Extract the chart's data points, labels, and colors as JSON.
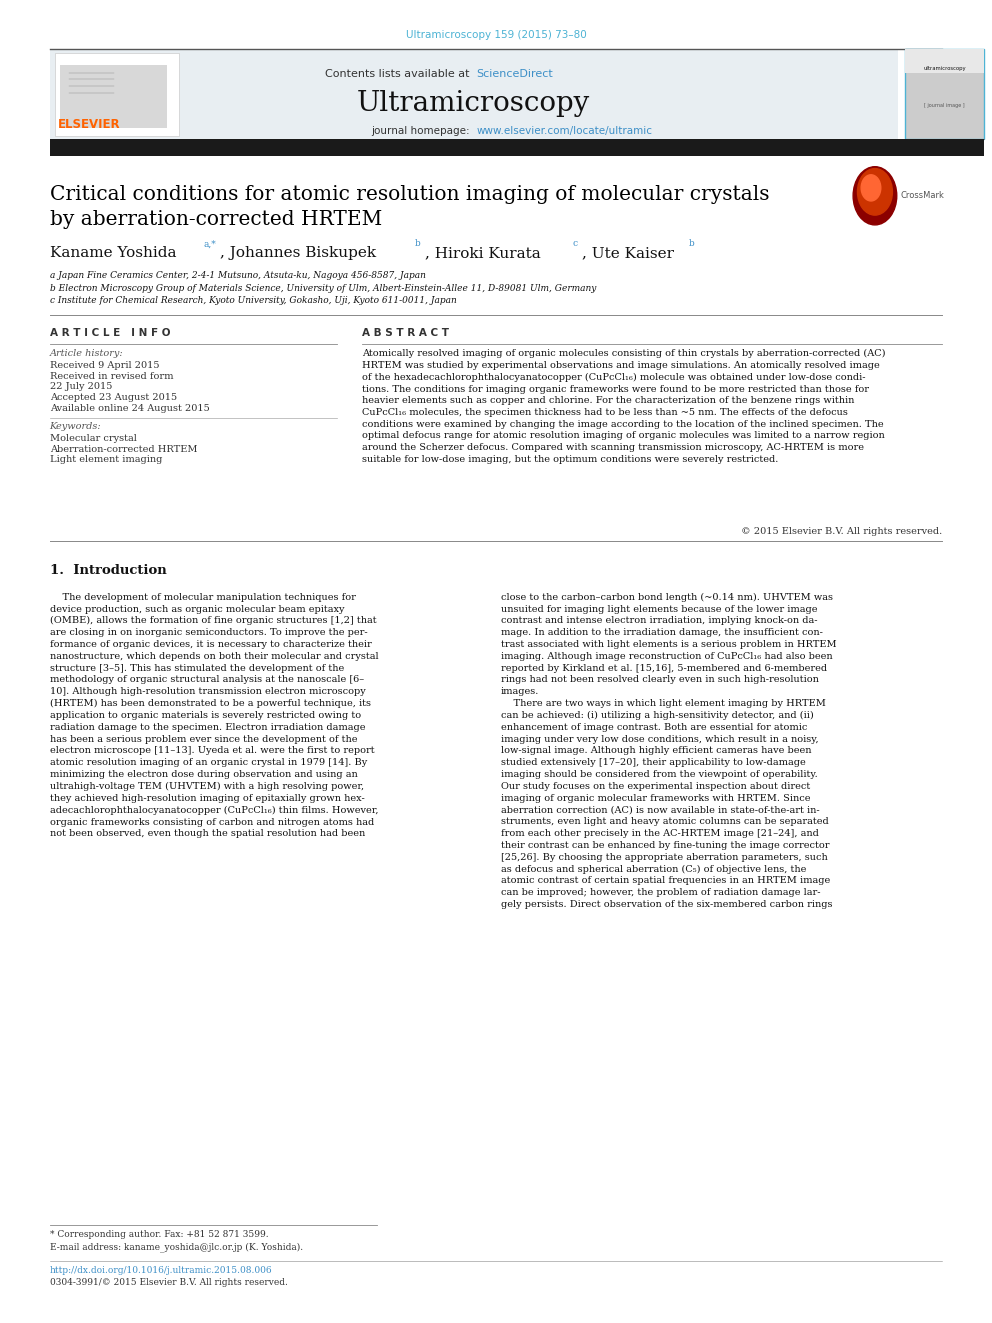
{
  "page_width": 9.92,
  "page_height": 13.23,
  "bg_color": "#ffffff",
  "top_citation": "Ultramicroscopy 159 (2015) 73–80",
  "top_citation_color": "#4db3d4",
  "header_bg": "#e8eef2",
  "black_bar_color": "#1a1a1a",
  "journal_name": "Ultramicroscopy",
  "contents_text": "Contents lists available at ",
  "sciencedirect_text": "ScienceDirect",
  "sciencedirect_color": "#3d8fc7",
  "homepage_text": "journal homepage: ",
  "homepage_url": "www.elsevier.com/locate/ultramic",
  "homepage_url_color": "#3d8fc7",
  "title_line1": "Critical conditions for atomic resolution imaging of molecular crystals",
  "title_line2": "by aberration-corrected HRTEM",
  "title_color": "#000000",
  "affil_a": "a Japan Fine Ceramics Center, 2-4-1 Mutsuno, Atsuta-ku, Nagoya 456-8587, Japan",
  "affil_b": "b Electron Microscopy Group of Materials Science, University of Ulm, Albert-Einstein-Allee 11, D-89081 Ulm, Germany",
  "affil_c": "c Institute for Chemical Research, Kyoto University, Gokasho, Uji, Kyoto 611-0011, Japan",
  "article_info_title": "A R T I C L E   I N F O",
  "abstract_title": "A B S T R A C T",
  "article_history_label": "Article history:",
  "received_text": "Received 9 April 2015",
  "revised_text": "Received in revised form",
  "revised_date": "22 July 2015",
  "accepted_text": "Accepted 23 August 2015",
  "online_text": "Available online 24 August 2015",
  "keywords_label": "Keywords:",
  "keyword1": "Molecular crystal",
  "keyword2": "Aberration-corrected HRTEM",
  "keyword3": "Light element imaging",
  "abstract_body": "Atomically resolved imaging of organic molecules consisting of thin crystals by aberration-corrected (AC)\nHRTEM was studied by experimental observations and image simulations. An atomically resolved image\nof the hexadecachlorophthalocyanatocopper (CuPcCl₁₆) molecule was obtained under low-dose condi-\ntions. The conditions for imaging organic frameworks were found to be more restricted than those for\nheavier elements such as copper and chlorine. For the characterization of the benzene rings within\nCuPcCl₁₆ molecules, the specimen thickness had to be less than ~5 nm. The effects of the defocus\nconditions were examined by changing the image according to the location of the inclined specimen. The\noptimal defocus range for atomic resolution imaging of organic molecules was limited to a narrow region\naround the Scherzer defocus. Compared with scanning transmission microscopy, AC-HRTEM is more\nsuitable for low-dose imaging, but the optimum conditions were severely restricted.",
  "copyright_text": "© 2015 Elsevier B.V. All rights reserved.",
  "intro_heading": "1.  Introduction",
  "intro_col1": "    The development of molecular manipulation techniques for\ndevice production, such as organic molecular beam epitaxy\n(OMBE), allows the formation of fine organic structures [1,2] that\nare closing in on inorganic semiconductors. To improve the per-\nformance of organic devices, it is necessary to characterize their\nnanostructure, which depends on both their molecular and crystal\nstructure [3–5]. This has stimulated the development of the\nmethodology of organic structural analysis at the nanoscale [6–\n10]. Although high-resolution transmission electron microscopy\n(HRTEM) has been demonstrated to be a powerful technique, its\napplication to organic materials is severely restricted owing to\nradiation damage to the specimen. Electron irradiation damage\nhas been a serious problem ever since the development of the\nelectron microscope [11–13]. Uyeda et al. were the first to report\natomic resolution imaging of an organic crystal in 1979 [14]. By\nminimizing the electron dose during observation and using an\nultrahigh-voltage TEM (UHVTEM) with a high resolving power,\nthey achieved high-resolution imaging of epitaxially grown hex-\nadecachlorophthalocyanatocopper (CuPcCl₁₆) thin films. However,\norganic frameworks consisting of carbon and nitrogen atoms had\nnot been observed, even though the spatial resolution had been",
  "intro_col2": "close to the carbon–carbon bond length (~0.14 nm). UHVTEM was\nunsuited for imaging light elements because of the lower image\ncontrast and intense electron irradiation, implying knock-on da-\nmage. In addition to the irradiation damage, the insufficient con-\ntrast associated with light elements is a serious problem in HRTEM\nimaging. Although image reconstruction of CuPcCl₁₆ had also been\nreported by Kirkland et al. [15,16], 5-membered and 6-membered\nrings had not been resolved clearly even in such high-resolution\nimages.\n    There are two ways in which light element imaging by HRTEM\ncan be achieved: (i) utilizing a high-sensitivity detector, and (ii)\nenhancement of image contrast. Both are essential for atomic\nimaging under very low dose conditions, which result in a noisy,\nlow-signal image. Although highly efficient cameras have been\nstudied extensively [17–20], their applicability to low-damage\nimaging should be considered from the viewpoint of operability.\nOur study focuses on the experimental inspection about direct\nimaging of organic molecular frameworks with HRTEM. Since\naberration correction (AC) is now available in state-of-the-art in-\nstruments, even light and heavy atomic columns can be separated\nfrom each other precisely in the AC-HRTEM image [21–24], and\ntheir contrast can be enhanced by fine-tuning the image corrector\n[25,26]. By choosing the appropriate aberration parameters, such\nas defocus and spherical aberration (C₅) of objective lens, the\natomic contrast of certain spatial frequencies in an HRTEM image\ncan be improved; however, the problem of radiation damage lar-\ngely persists. Direct observation of the six-membered carbon rings",
  "footnote_star": "* Corresponding author. Fax: +81 52 871 3599.",
  "footnote_email": "E-mail address: kaname_yoshida@jlc.or.jp (K. Yoshida).",
  "doi_text": "http://dx.doi.org/10.1016/j.ultramic.2015.08.006",
  "issn_text": "0304-3991/© 2015 Elsevier B.V. All rights reserved.",
  "elsevier_color": "#FF6200",
  "link_color": "#3d8fc7"
}
